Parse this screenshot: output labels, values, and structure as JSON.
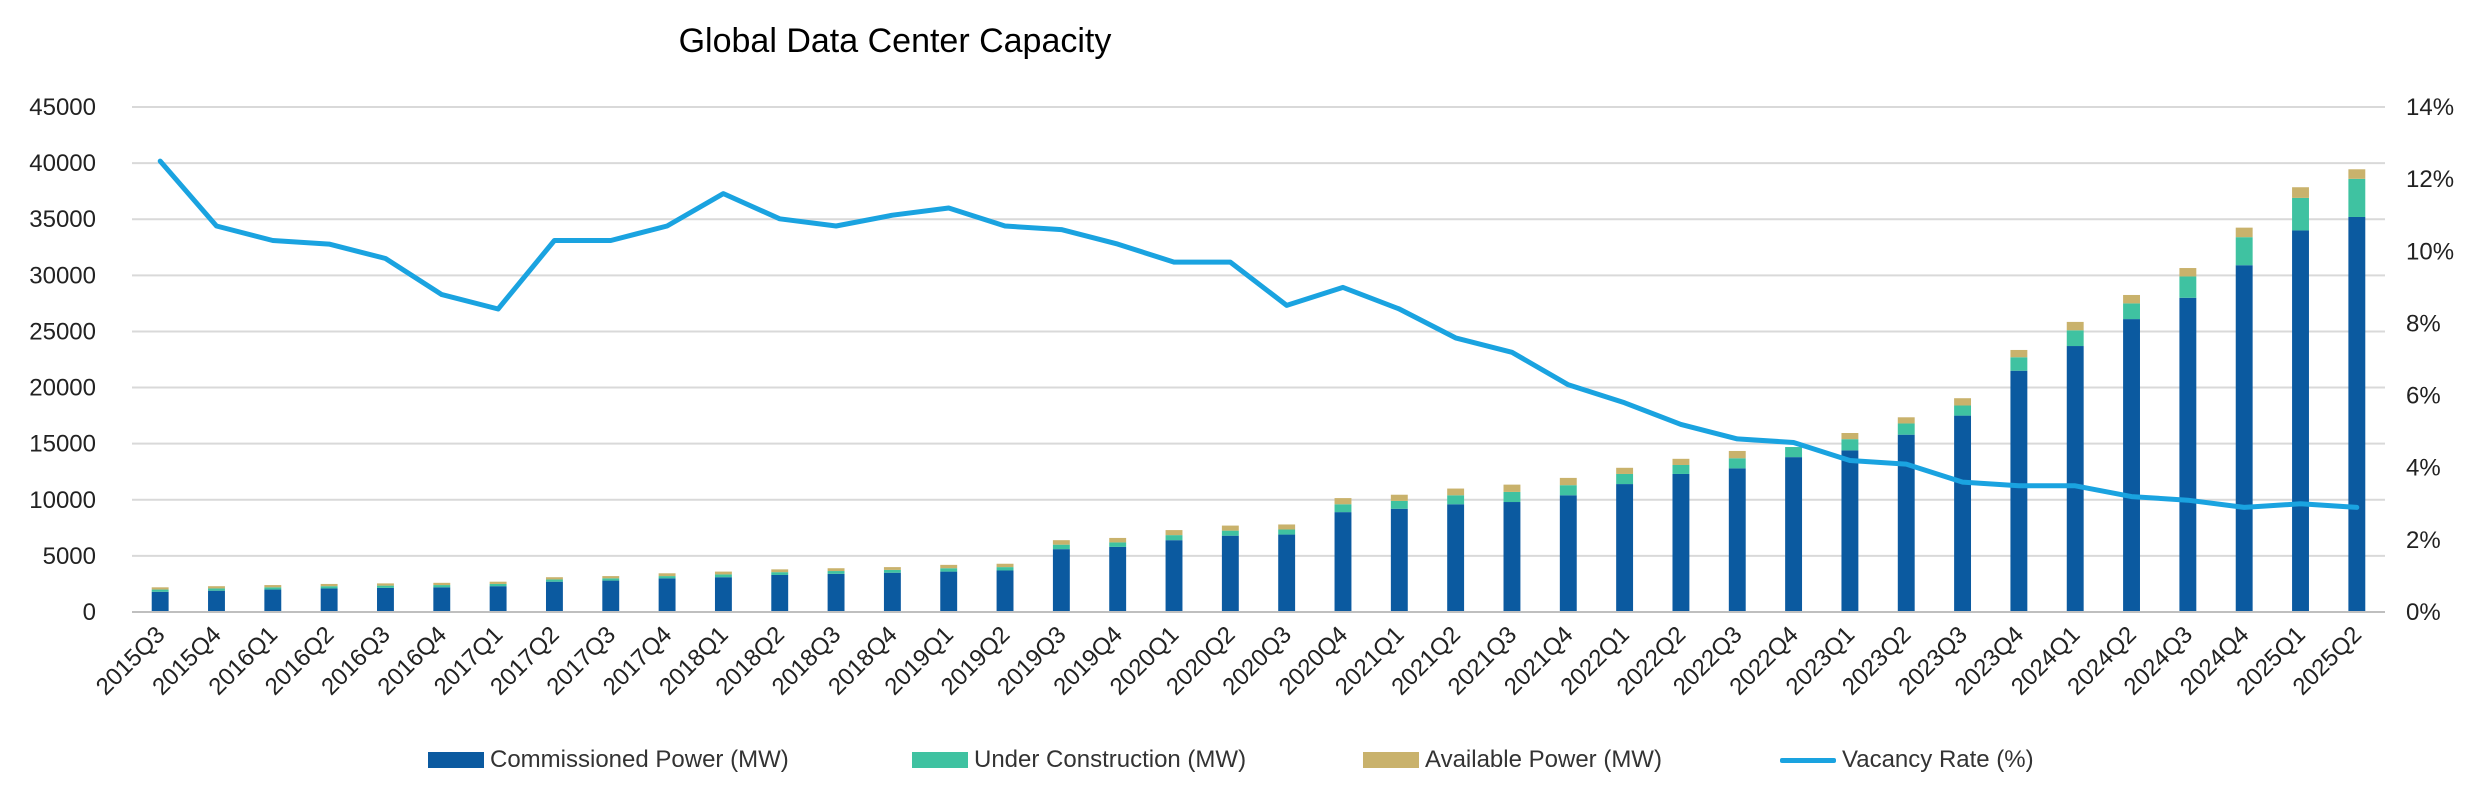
{
  "chart_data": {
    "type": "bar",
    "title": "Global Data Center Capacity",
    "categories": [
      "2015Q3",
      "2015Q4",
      "2016Q1",
      "2016Q2",
      "2016Q3",
      "2016Q4",
      "2017Q1",
      "2017Q2",
      "2017Q3",
      "2017Q4",
      "2018Q1",
      "2018Q2",
      "2018Q3",
      "2018Q4",
      "2019Q1",
      "2019Q2",
      "2019Q3",
      "2019Q4",
      "2020Q1",
      "2020Q2",
      "2020Q3",
      "2020Q4",
      "2021Q1",
      "2021Q2",
      "2021Q3",
      "2021Q4",
      "2022Q1",
      "2022Q2",
      "2022Q3",
      "2022Q4",
      "2023Q1",
      "2023Q2",
      "2023Q3",
      "2023Q4",
      "2024Q1",
      "2024Q2",
      "2024Q3",
      "2024Q4",
      "2025Q1",
      "2025Q2"
    ],
    "series": [
      {
        "name": "Commissioned Power (MW)",
        "kind": "bar",
        "axis": "left",
        "color": "#0b5aa0",
        "values": [
          1800,
          1900,
          2000,
          2100,
          2150,
          2200,
          2300,
          2700,
          2800,
          3000,
          3100,
          3300,
          3400,
          3500,
          3600,
          3700,
          5600,
          5800,
          6400,
          6800,
          6900,
          8900,
          9200,
          9600,
          9800,
          10400,
          11400,
          12300,
          12800,
          13800,
          14400,
          15800,
          17500,
          21500,
          23700,
          26100,
          28000,
          30900,
          34000,
          35200
        ]
      },
      {
        "name": "Under Construction (MW)",
        "kind": "bar",
        "axis": "left",
        "color": "#3fc2a1",
        "values": [
          200,
          200,
          200,
          200,
          200,
          200,
          200,
          200,
          200,
          200,
          250,
          250,
          250,
          250,
          300,
          300,
          400,
          400,
          450,
          450,
          450,
          700,
          700,
          800,
          900,
          900,
          900,
          800,
          900,
          900,
          1000,
          1000,
          900,
          1200,
          1400,
          1400,
          1900,
          2500,
          2900,
          3400
        ]
      },
      {
        "name": "Available Power (MW)",
        "kind": "bar",
        "axis": "left",
        "color": "#c9b26c",
        "values": [
          200,
          200,
          200,
          200,
          200,
          200,
          200,
          200,
          200,
          250,
          250,
          250,
          250,
          250,
          300,
          300,
          400,
          400,
          450,
          450,
          450,
          550,
          550,
          600,
          650,
          650,
          550,
          550,
          650,
          0,
          550,
          550,
          650,
          650,
          750,
          750,
          750,
          850,
          950,
          850
        ]
      },
      {
        "name": "Vacancy Rate (%)",
        "kind": "line",
        "axis": "right",
        "color": "#1aa3e0",
        "values": [
          12.5,
          10.7,
          10.3,
          10.2,
          9.8,
          8.8,
          8.4,
          10.3,
          10.3,
          10.7,
          11.6,
          10.9,
          10.7,
          11.0,
          11.2,
          10.7,
          10.6,
          10.2,
          9.7,
          9.7,
          8.5,
          9.0,
          8.4,
          7.6,
          7.2,
          6.3,
          5.8,
          5.2,
          4.8,
          4.7,
          4.2,
          4.1,
          3.6,
          3.5,
          3.5,
          3.2,
          3.1,
          2.9,
          3.0,
          2.9
        ]
      }
    ],
    "ylim": [
      0,
      45000
    ],
    "yticks": [
      0,
      5000,
      10000,
      15000,
      20000,
      25000,
      30000,
      35000,
      40000,
      45000
    ],
    "y2lim": [
      0,
      14
    ],
    "y2ticks": [
      0,
      2,
      4,
      6,
      8,
      10,
      12,
      14
    ],
    "y2tick_labels": [
      "0%",
      "2%",
      "4%",
      "6%",
      "8%",
      "10%",
      "12%",
      "14%"
    ],
    "xlabel": "",
    "ylabel": "",
    "grid": true,
    "legend_position": "bottom"
  }
}
